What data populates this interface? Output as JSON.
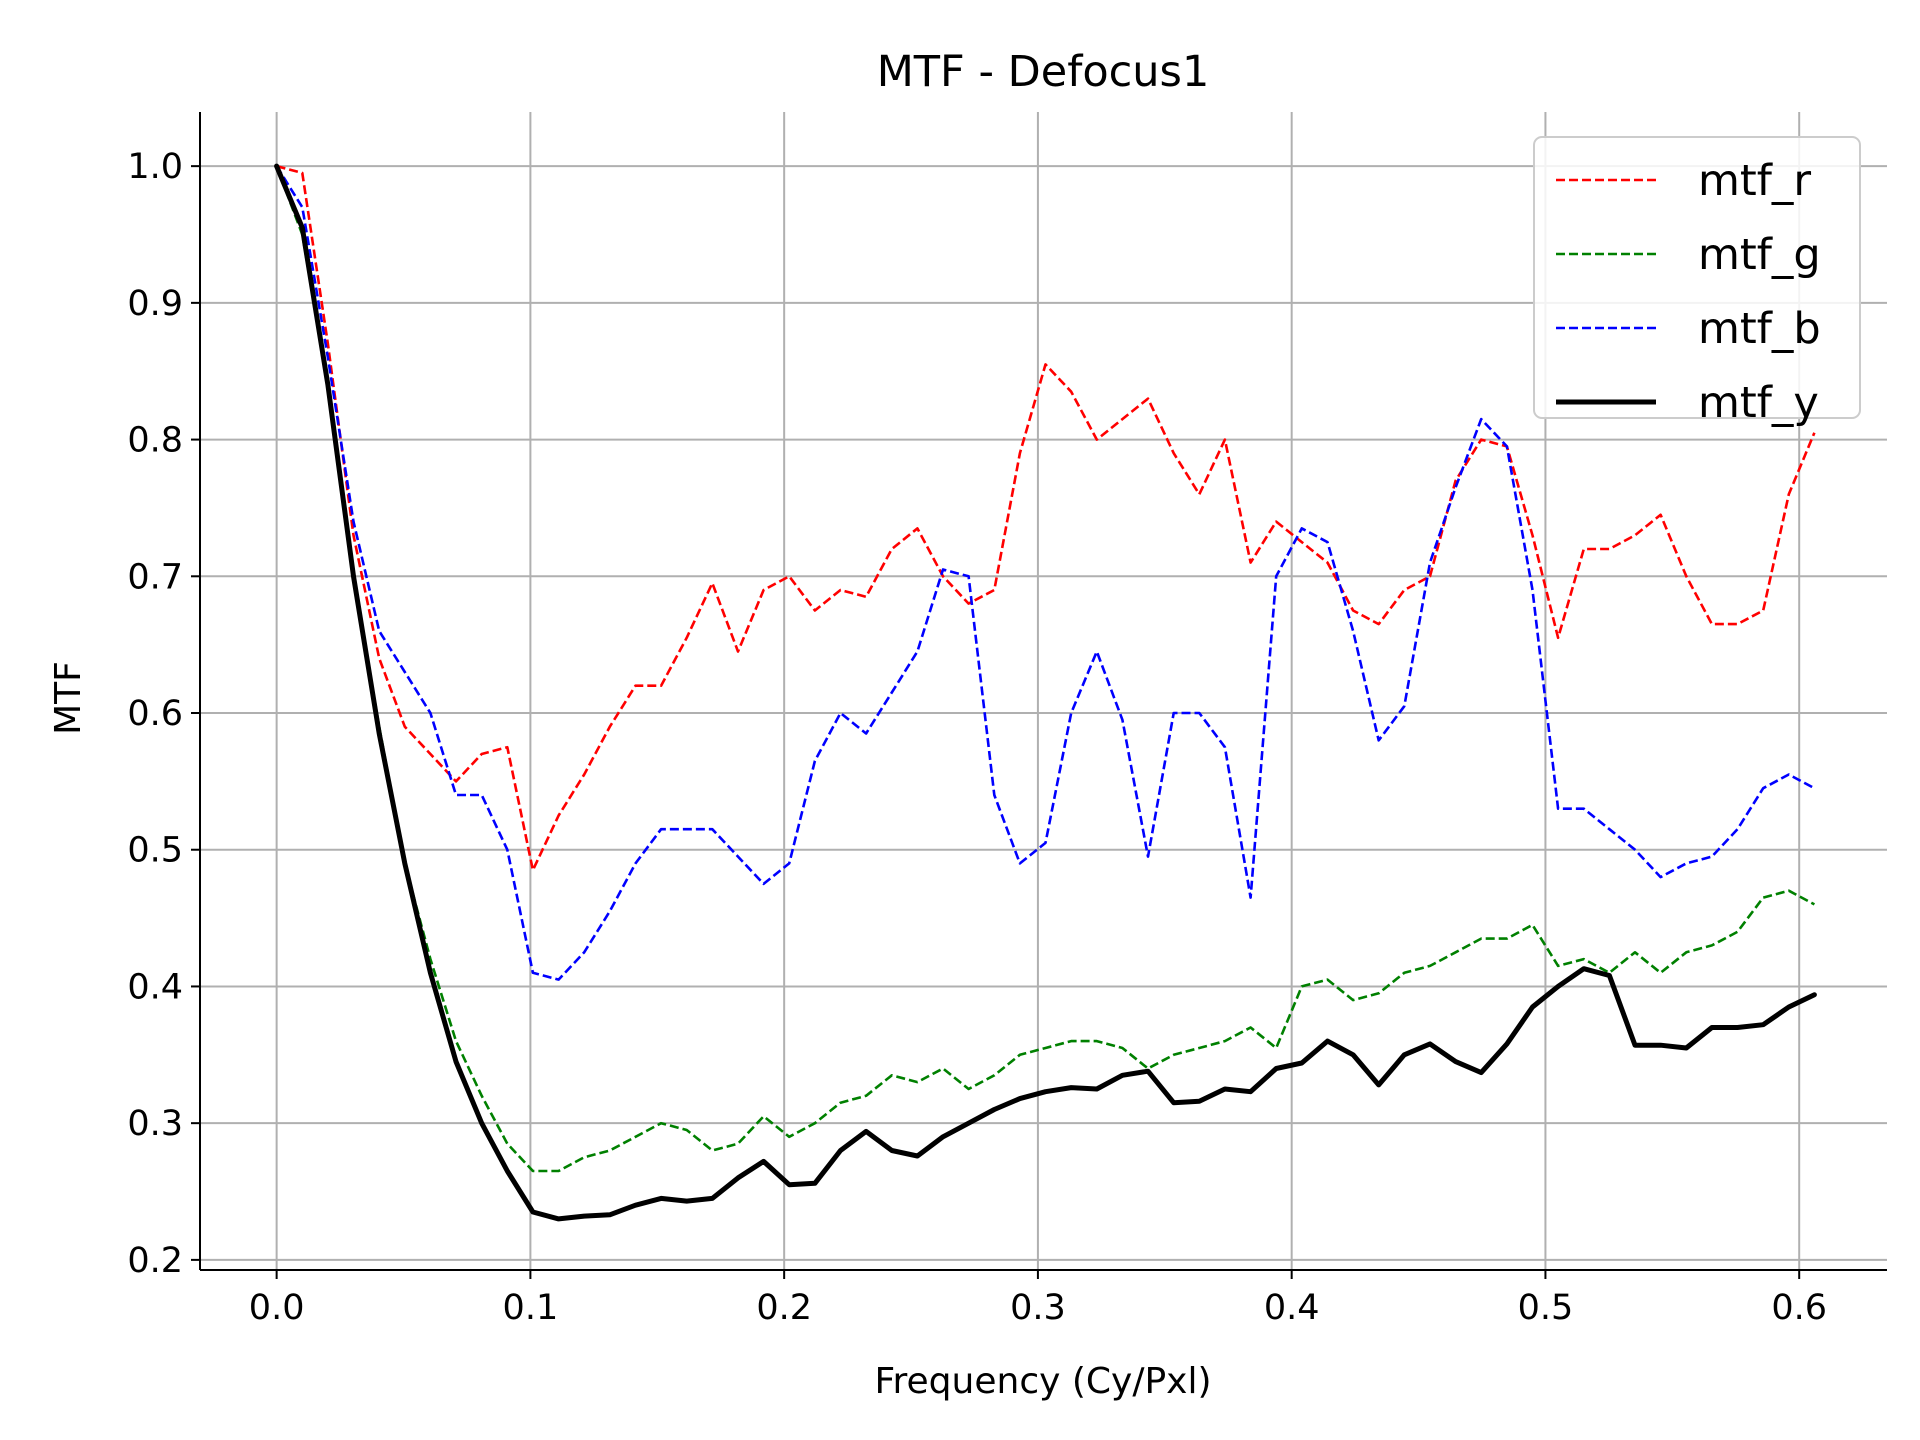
{
  "chart_data": {
    "type": "line",
    "title": "MTF - Defocus1",
    "xlabel": "Frequency (Cy/Pxl)",
    "ylabel": "MTF",
    "xlim": [
      -0.0302,
      0.6346
    ],
    "ylim": [
      0.1926,
      1.0396
    ],
    "xticks": [
      0.0,
      0.1,
      0.2,
      0.3,
      0.4,
      0.5,
      0.6
    ],
    "xtick_labels": [
      "0.0",
      "0.1",
      "0.2",
      "0.3",
      "0.4",
      "0.5",
      "0.6"
    ],
    "yticks": [
      0.2,
      0.3,
      0.4,
      0.5,
      0.6,
      0.7,
      0.8,
      0.9,
      1.0
    ],
    "ytick_labels": [
      "0.2",
      "0.3",
      "0.4",
      "0.5",
      "0.6",
      "0.7",
      "0.8",
      "0.9",
      "1.0"
    ],
    "grid": true,
    "legend_position": "top-right",
    "series": [
      {
        "name": "mtf_r",
        "color": "#ff0000",
        "style": "dashed",
        "x": [
          0,
          0.0101,
          0.0202,
          0.0303,
          0.0404,
          0.0505,
          0.0606,
          0.0707,
          0.0808,
          0.0909,
          0.101,
          0.1111,
          0.1212,
          0.1313,
          0.1414,
          0.1515,
          0.1616,
          0.1717,
          0.1818,
          0.1919,
          0.202,
          0.2121,
          0.2222,
          0.2323,
          0.2424,
          0.2525,
          0.2626,
          0.2727,
          0.2828,
          0.2929,
          0.303,
          0.3131,
          0.3232,
          0.3333,
          0.3434,
          0.3535,
          0.3636,
          0.3737,
          0.3838,
          0.3939,
          0.404,
          0.4141,
          0.4242,
          0.4343,
          0.4444,
          0.4545,
          0.4646,
          0.4747,
          0.4848,
          0.4949,
          0.505,
          0.5151,
          0.5252,
          0.5353,
          0.5454,
          0.5555,
          0.5656,
          0.5757,
          0.5858,
          0.5959,
          0.606
        ],
        "y": [
          1.0,
          0.995,
          0.87,
          0.73,
          0.64,
          0.59,
          0.57,
          0.55,
          0.57,
          0.575,
          0.485,
          0.525,
          0.555,
          0.59,
          0.62,
          0.62,
          0.655,
          0.695,
          0.645,
          0.69,
          0.7,
          0.675,
          0.69,
          0.685,
          0.72,
          0.735,
          0.7,
          0.68,
          0.69,
          0.79,
          0.855,
          0.835,
          0.8,
          0.815,
          0.83,
          0.79,
          0.76,
          0.8,
          0.71,
          0.74,
          0.725,
          0.71,
          0.675,
          0.665,
          0.69,
          0.7,
          0.77,
          0.8,
          0.795,
          0.73,
          0.655,
          0.72,
          0.72,
          0.73,
          0.745,
          0.7,
          0.665,
          0.665,
          0.675,
          0.76,
          0.805
        ]
      },
      {
        "name": "mtf_g",
        "color": "#008000",
        "style": "dashed",
        "x": [
          0,
          0.0101,
          0.0202,
          0.0303,
          0.0404,
          0.0505,
          0.0606,
          0.0707,
          0.0808,
          0.0909,
          0.101,
          0.1111,
          0.1212,
          0.1313,
          0.1414,
          0.1515,
          0.1616,
          0.1717,
          0.1818,
          0.1919,
          0.202,
          0.2121,
          0.2222,
          0.2323,
          0.2424,
          0.2525,
          0.2626,
          0.2727,
          0.2828,
          0.2929,
          0.303,
          0.3131,
          0.3232,
          0.3333,
          0.3434,
          0.3535,
          0.3636,
          0.3737,
          0.3838,
          0.3939,
          0.404,
          0.4141,
          0.4242,
          0.4343,
          0.4444,
          0.4545,
          0.4646,
          0.4747,
          0.4848,
          0.4949,
          0.505,
          0.5151,
          0.5252,
          0.5353,
          0.5454,
          0.5555,
          0.5656,
          0.5757,
          0.5858,
          0.5959,
          0.606
        ],
        "y": [
          1.0,
          0.95,
          0.84,
          0.7,
          0.59,
          0.49,
          0.42,
          0.36,
          0.32,
          0.285,
          0.265,
          0.265,
          0.275,
          0.28,
          0.29,
          0.3,
          0.295,
          0.28,
          0.285,
          0.305,
          0.29,
          0.3,
          0.315,
          0.32,
          0.335,
          0.33,
          0.34,
          0.325,
          0.335,
          0.35,
          0.355,
          0.36,
          0.36,
          0.355,
          0.34,
          0.35,
          0.355,
          0.36,
          0.37,
          0.355,
          0.4,
          0.405,
          0.39,
          0.395,
          0.41,
          0.415,
          0.425,
          0.435,
          0.435,
          0.445,
          0.415,
          0.42,
          0.41,
          0.425,
          0.41,
          0.425,
          0.43,
          0.44,
          0.465,
          0.47,
          0.46
        ]
      },
      {
        "name": "mtf_b",
        "color": "#0000ff",
        "style": "dashed",
        "x": [
          0,
          0.0101,
          0.0202,
          0.0303,
          0.0404,
          0.0505,
          0.0606,
          0.0707,
          0.0808,
          0.0909,
          0.101,
          0.1111,
          0.1212,
          0.1313,
          0.1414,
          0.1515,
          0.1616,
          0.1717,
          0.1818,
          0.1919,
          0.202,
          0.2121,
          0.2222,
          0.2323,
          0.2424,
          0.2525,
          0.2626,
          0.2727,
          0.2828,
          0.2929,
          0.303,
          0.3131,
          0.3232,
          0.3333,
          0.3434,
          0.3535,
          0.3636,
          0.3737,
          0.3838,
          0.3939,
          0.404,
          0.4141,
          0.4242,
          0.4343,
          0.4444,
          0.4545,
          0.4646,
          0.4747,
          0.4848,
          0.4949,
          0.505,
          0.5151,
          0.5252,
          0.5353,
          0.5454,
          0.5555,
          0.5656,
          0.5757,
          0.5858,
          0.5959,
          0.606
        ],
        "y": [
          1.0,
          0.97,
          0.86,
          0.74,
          0.66,
          0.63,
          0.6,
          0.54,
          0.54,
          0.5,
          0.41,
          0.405,
          0.425,
          0.455,
          0.49,
          0.515,
          0.515,
          0.515,
          0.495,
          0.475,
          0.49,
          0.565,
          0.6,
          0.585,
          0.615,
          0.645,
          0.705,
          0.7,
          0.54,
          0.49,
          0.505,
          0.6,
          0.645,
          0.595,
          0.495,
          0.6,
          0.6,
          0.575,
          0.465,
          0.7,
          0.735,
          0.725,
          0.66,
          0.58,
          0.605,
          0.71,
          0.765,
          0.815,
          0.795,
          0.69,
          0.53,
          0.53,
          0.515,
          0.5,
          0.48,
          0.49,
          0.495,
          0.515,
          0.545,
          0.555,
          0.545
        ]
      },
      {
        "name": "mtf_y",
        "color": "#000000",
        "style": "solid",
        "x": [
          0,
          0.0101,
          0.0202,
          0.0303,
          0.0404,
          0.0505,
          0.0606,
          0.0707,
          0.0808,
          0.0909,
          0.101,
          0.1111,
          0.1212,
          0.1313,
          0.1414,
          0.1515,
          0.1616,
          0.1717,
          0.1818,
          0.1919,
          0.202,
          0.2121,
          0.2222,
          0.2323,
          0.2424,
          0.2525,
          0.2626,
          0.2727,
          0.2828,
          0.2929,
          0.303,
          0.3131,
          0.3232,
          0.3333,
          0.3434,
          0.3535,
          0.3636,
          0.3737,
          0.3838,
          0.3939,
          0.404,
          0.4141,
          0.4242,
          0.4343,
          0.4444,
          0.4545,
          0.4646,
          0.4747,
          0.4848,
          0.4949,
          0.505,
          0.5151,
          0.5252,
          0.5353,
          0.5454,
          0.5555,
          0.5656,
          0.5757,
          0.5858,
          0.5959,
          0.606
        ],
        "y": [
          1.0,
          0.955,
          0.84,
          0.7,
          0.585,
          0.49,
          0.41,
          0.345,
          0.3,
          0.265,
          0.235,
          0.23,
          0.232,
          0.233,
          0.24,
          0.245,
          0.243,
          0.245,
          0.26,
          0.272,
          0.255,
          0.256,
          0.28,
          0.294,
          0.28,
          0.276,
          0.29,
          0.3,
          0.31,
          0.318,
          0.323,
          0.326,
          0.325,
          0.335,
          0.338,
          0.315,
          0.316,
          0.325,
          0.323,
          0.34,
          0.344,
          0.36,
          0.35,
          0.328,
          0.35,
          0.358,
          0.345,
          0.337,
          0.358,
          0.385,
          0.4,
          0.413,
          0.408,
          0.357,
          0.357,
          0.355,
          0.37,
          0.37,
          0.372,
          0.385,
          0.394
        ]
      }
    ]
  }
}
